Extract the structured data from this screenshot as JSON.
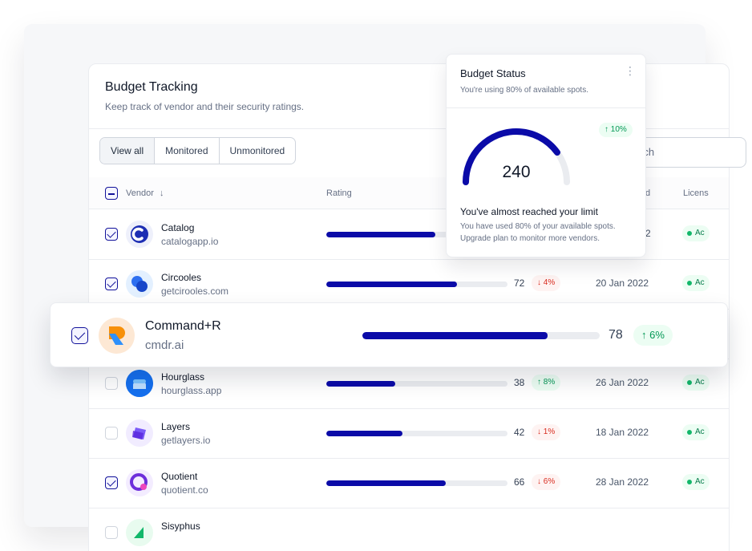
{
  "card": {
    "title": "Budget Tracking",
    "subtitle": "Keep track of vendor and their security ratings."
  },
  "filters": [
    "View all",
    "Monitored",
    "Unmonitored"
  ],
  "search": {
    "value": "rch"
  },
  "table": {
    "headers": {
      "vendor": "Vendor",
      "rating": "Rating",
      "date": "d",
      "license": "Licens"
    },
    "rows": [
      {
        "name": "Catalog",
        "domain": "catalogapp.io",
        "rating": 60,
        "score": "",
        "change": "",
        "trend": "up",
        "date": "2",
        "license": "Ac",
        "checked": true
      },
      {
        "name": "Circooles",
        "domain": "getcirooles.com",
        "rating": 72,
        "score": "72",
        "change": "4%",
        "trend": "down",
        "date": "20 Jan 2022",
        "license": "Ac",
        "checked": true
      },
      {
        "name": "Hourglass",
        "domain": "hourglass.app",
        "rating": 38,
        "score": "38",
        "change": "8%",
        "trend": "up",
        "date": "26 Jan 2022",
        "license": "Ac",
        "checked": false
      },
      {
        "name": "Layers",
        "domain": "getlayers.io",
        "rating": 42,
        "score": "42",
        "change": "1%",
        "trend": "down",
        "date": "18 Jan 2022",
        "license": "Ac",
        "checked": false
      },
      {
        "name": "Quotient",
        "domain": "quotient.co",
        "rating": 66,
        "score": "66",
        "change": "6%",
        "trend": "down",
        "date": "28 Jan 2022",
        "license": "Ac",
        "checked": true
      },
      {
        "name": "Sisyphus",
        "domain": "",
        "rating": 0,
        "score": "",
        "change": "",
        "trend": "up",
        "date": "",
        "license": "",
        "checked": false
      }
    ]
  },
  "highlight": {
    "name": "Command+R",
    "domain": "cmdr.ai",
    "rating": 78,
    "score": "78",
    "change": "6%",
    "trend": "up",
    "checked": true
  },
  "budget": {
    "title": "Budget Status",
    "subtitle": "You're using 80% of available spots.",
    "badge": "10%",
    "value": "240",
    "fill": 0.8,
    "heading": "You've almost reached your limit",
    "body": "You have used 80% of your available spots. Upgrade plan to monitor more vendors."
  },
  "colors": {
    "accent": "#0b0ba8",
    "up": "#039855",
    "down": "#d92d20"
  }
}
